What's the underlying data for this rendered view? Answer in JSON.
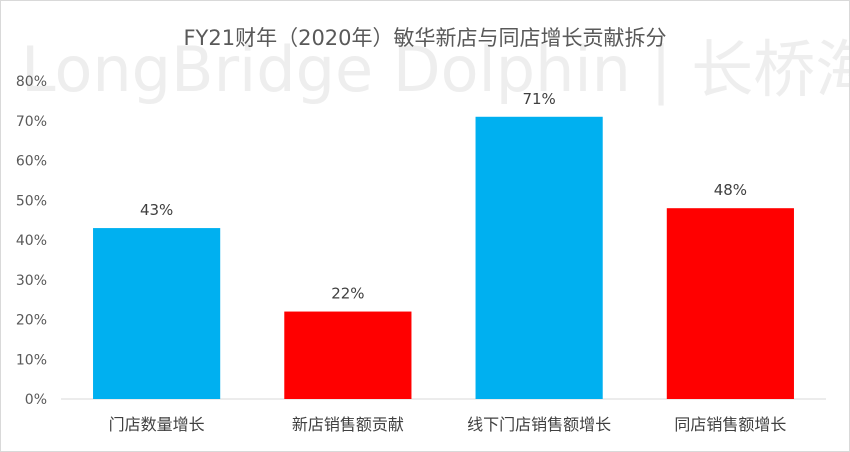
{
  "chart_data": {
    "type": "bar",
    "title": "FY21财年（2020年）敏华新店与同店增长贡献拆分",
    "watermark": "LongBridge Dolphin | 长桥海豚投研",
    "categories": [
      "门店数量增长",
      "新店销售额贡献",
      "线下门店销售额增长",
      "同店销售额增长"
    ],
    "values": [
      43,
      22,
      71,
      48
    ],
    "data_labels": [
      "43%",
      "22%",
      "71%",
      "48%"
    ],
    "bar_colors": [
      "#00b0f0",
      "#ff0000",
      "#00b0f0",
      "#ff0000"
    ],
    "ylim": [
      0,
      80
    ],
    "yticks": [
      "0%",
      "10%",
      "20%",
      "30%",
      "40%",
      "50%",
      "60%",
      "70%",
      "80%"
    ],
    "grid": false,
    "legend": "none",
    "xlabel": "",
    "ylabel": ""
  }
}
